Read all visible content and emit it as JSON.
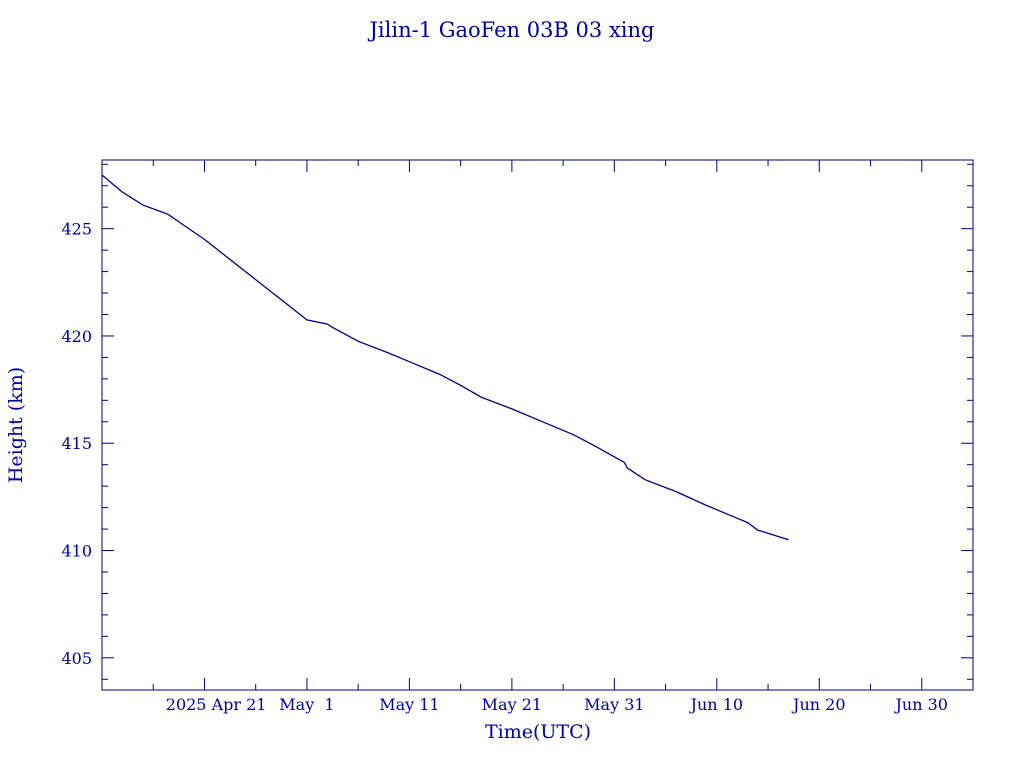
{
  "chart_data": {
    "type": "line",
    "title": "Jilin-1 GaoFen 03B 03 xing",
    "xlabel": "Time(UTC)",
    "ylabel": "Height (km)",
    "x_range": [
      "2025-04-11",
      "2025-07-05"
    ],
    "ylim": [
      403.5,
      428.2
    ],
    "xticks": [
      {
        "date": "2025-04-21",
        "label": "2025 Apr 21"
      },
      {
        "date": "2025-05-01",
        "label": "May  1"
      },
      {
        "date": "2025-05-11",
        "label": "May 11"
      },
      {
        "date": "2025-05-21",
        "label": "May 21"
      },
      {
        "date": "2025-05-31",
        "label": "May 31"
      },
      {
        "date": "2025-06-10",
        "label": "Jun 10"
      },
      {
        "date": "2025-06-20",
        "label": "Jun 20"
      },
      {
        "date": "2025-06-30",
        "label": "Jun 30"
      }
    ],
    "yticks": [
      405,
      410,
      415,
      420,
      425
    ],
    "grid": false,
    "line_color": "#000080",
    "text_color": "#0000a0",
    "series": [
      {
        "x": [
          "2025-04-11",
          "2025-04-13",
          "2025-04-15",
          "2025-04-17",
          "2025-04-17 12:00",
          "2025-04-19",
          "2025-04-21",
          "2025-04-23",
          "2025-04-25",
          "2025-04-27",
          "2025-04-29",
          "2025-05-01",
          "2025-05-03",
          "2025-05-03 12:00",
          "2025-05-06",
          "2025-05-09",
          "2025-05-11",
          "2025-05-14",
          "2025-05-16",
          "2025-05-18",
          "2025-05-21",
          "2025-05-24",
          "2025-05-27",
          "2025-05-29",
          "2025-06-01",
          "2025-06-01 06:00",
          "2025-06-03",
          "2025-06-06",
          "2025-06-09",
          "2025-06-12",
          "2025-06-13",
          "2025-06-14",
          "2025-06-17"
        ],
        "y": [
          427.5,
          426.7,
          426.1,
          425.75,
          425.65,
          425.15,
          424.5,
          423.75,
          423.0,
          422.25,
          421.5,
          420.75,
          420.55,
          420.4,
          419.75,
          419.2,
          418.8,
          418.2,
          417.7,
          417.15,
          416.6,
          416.0,
          415.4,
          414.9,
          414.1,
          413.85,
          413.3,
          412.75,
          412.1,
          411.5,
          411.3,
          410.95,
          410.5
        ]
      }
    ]
  }
}
